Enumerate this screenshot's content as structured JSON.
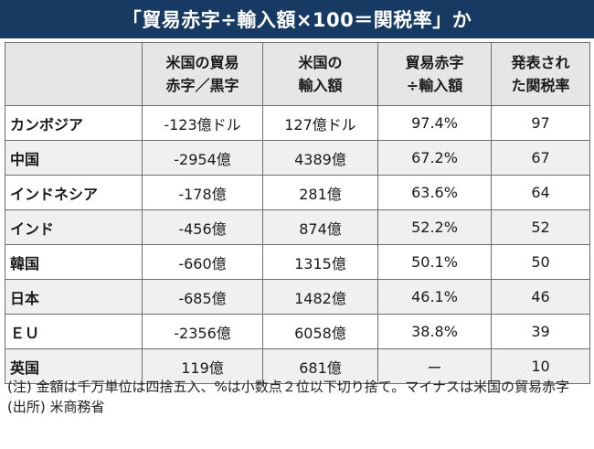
{
  "title": "「貿易赤字÷輸入額×100＝関税率」か",
  "table": {
    "headers": [
      {
        "line1": "",
        "line2": ""
      },
      {
        "line1": "米国の貿易",
        "line2": "赤字／黒字"
      },
      {
        "line1": "米国の",
        "line2": "輸入額"
      },
      {
        "line1": "貿易赤字",
        "line2": "÷輸入額"
      },
      {
        "line1": "発表され",
        "line2": "た関税率"
      }
    ],
    "rows": [
      {
        "country": "カンボジア",
        "balance": "-123億ドル",
        "imports": "127億ドル",
        "ratio": "97.4%",
        "tariff": "97"
      },
      {
        "country": "中国",
        "balance": "-2954億",
        "imports": "4389億",
        "ratio": "67.2%",
        "tariff": "67"
      },
      {
        "country": "インドネシア",
        "balance": "-178億",
        "imports": "281億",
        "ratio": "63.6%",
        "tariff": "64"
      },
      {
        "country": "インド",
        "balance": "-456億",
        "imports": "874億",
        "ratio": "52.2%",
        "tariff": "52"
      },
      {
        "country": "韓国",
        "balance": "-660億",
        "imports": "1315億",
        "ratio": "50.1%",
        "tariff": "50"
      },
      {
        "country": "日本",
        "balance": "-685億",
        "imports": "1482億",
        "ratio": "46.1%",
        "tariff": "46"
      },
      {
        "country": "ＥＵ",
        "balance": "-2356億",
        "imports": "6058億",
        "ratio": "38.8%",
        "tariff": "39"
      },
      {
        "country": "英国",
        "balance": "119億",
        "imports": "681億",
        "ratio": "ー",
        "tariff": "10"
      }
    ]
  },
  "notes": {
    "note": "(注) 金額は千万単位は四捨五入、%は小数点２位以下切り捨て。マイナスは米国の貿易赤字",
    "source": "(出所) 米商務省"
  },
  "colors": {
    "title_bg": "#173a63",
    "header_bg": "#e6e6e6",
    "stripe_bg": "#f0f0f0",
    "border": "#6e6e6e"
  }
}
